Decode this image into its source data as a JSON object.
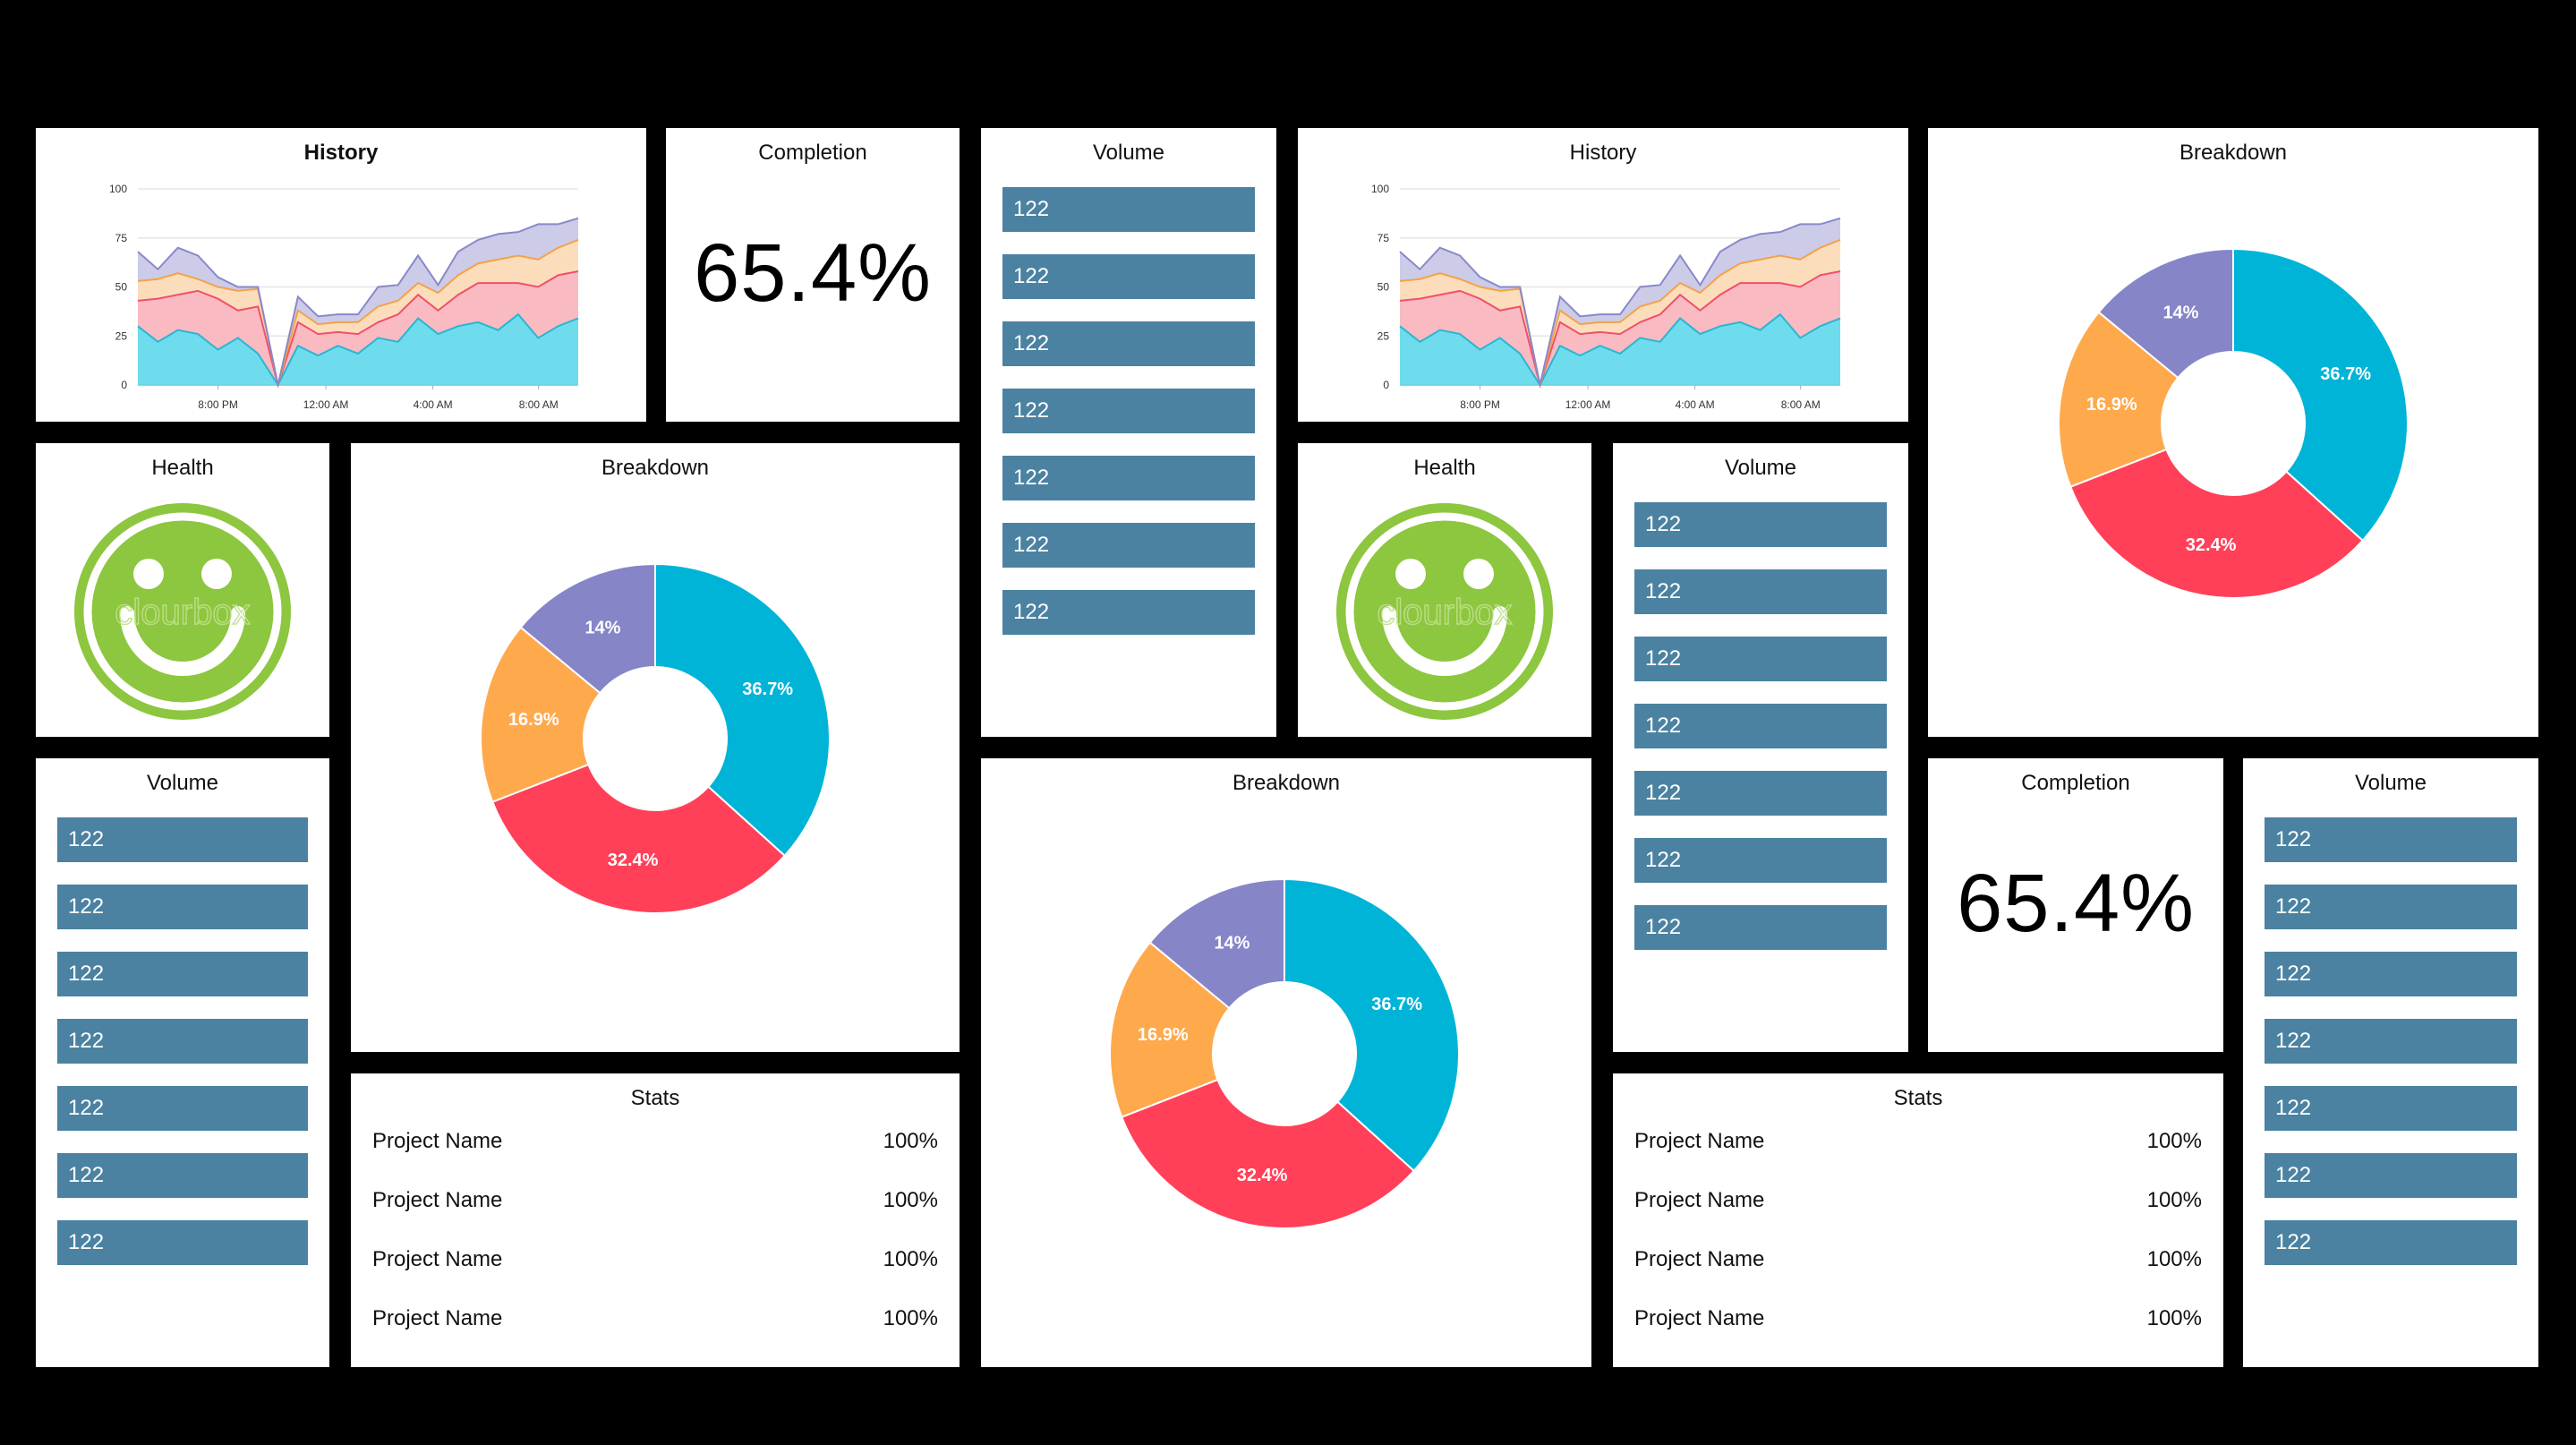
{
  "titles": {
    "history": "History",
    "completion": "Completion",
    "volume": "Volume",
    "breakdown": "Breakdown",
    "health": "Health",
    "stats": "Stats"
  },
  "completion_value": "65.4%",
  "health_watermark": "clourbox",
  "volume_values": [
    "122",
    "122",
    "122",
    "122",
    "122",
    "122",
    "122"
  ],
  "stats_rows": [
    {
      "name": "Project Name",
      "value": "100%"
    },
    {
      "name": "Project Name",
      "value": "100%"
    },
    {
      "name": "Project Name",
      "value": "100%"
    },
    {
      "name": "Project Name",
      "value": "100%"
    }
  ],
  "colors": {
    "background": "#000000",
    "tile": "#ffffff",
    "volume_bar": "#4b82a1",
    "smiley": "#8dc63f"
  },
  "chart_data": [
    {
      "type": "area",
      "title": "History",
      "stacked": true,
      "x_tick_labels": [
        "8:00 PM",
        "12:00 AM",
        "4:00 AM",
        "8:00 AM"
      ],
      "ylim": [
        0,
        100
      ],
      "y_ticks": [
        0,
        25,
        50,
        75,
        100
      ],
      "grid": true,
      "series": [
        {
          "color": "#5fd8eb",
          "values": [
            30,
            22,
            28,
            26,
            18,
            24,
            16,
            0,
            20,
            15,
            20,
            16,
            24,
            22,
            34,
            26,
            30,
            32,
            28,
            36,
            24,
            30,
            34
          ]
        },
        {
          "color": "#f9b3bb",
          "values": [
            13,
            22,
            18,
            22,
            26,
            14,
            24,
            0,
            12,
            11,
            7,
            10,
            8,
            14,
            12,
            12,
            16,
            20,
            24,
            16,
            26,
            26,
            24
          ]
        },
        {
          "color": "#fcd9b4",
          "values": [
            10,
            10,
            11,
            6,
            6,
            10,
            9,
            0,
            6,
            5,
            5,
            6,
            8,
            7,
            6,
            9,
            10,
            10,
            12,
            14,
            14,
            14,
            16
          ]
        },
        {
          "color": "#c6c6e6",
          "values": [
            15,
            5,
            13,
            12,
            5,
            2,
            1,
            0,
            7,
            4,
            4,
            4,
            10,
            8,
            14,
            4,
            12,
            12,
            13,
            12,
            18,
            12,
            11
          ]
        }
      ]
    },
    {
      "type": "pie",
      "title": "Breakdown",
      "donut": true,
      "slices": [
        {
          "label": "36.7%",
          "value": 36.7,
          "color": "#00b4d8"
        },
        {
          "label": "32.4%",
          "value": 32.4,
          "color": "#ff4058"
        },
        {
          "label": "16.9%",
          "value": 16.9,
          "color": "#ffa94d"
        },
        {
          "label": "14%",
          "value": 14.0,
          "color": "#8585c8"
        }
      ]
    }
  ]
}
